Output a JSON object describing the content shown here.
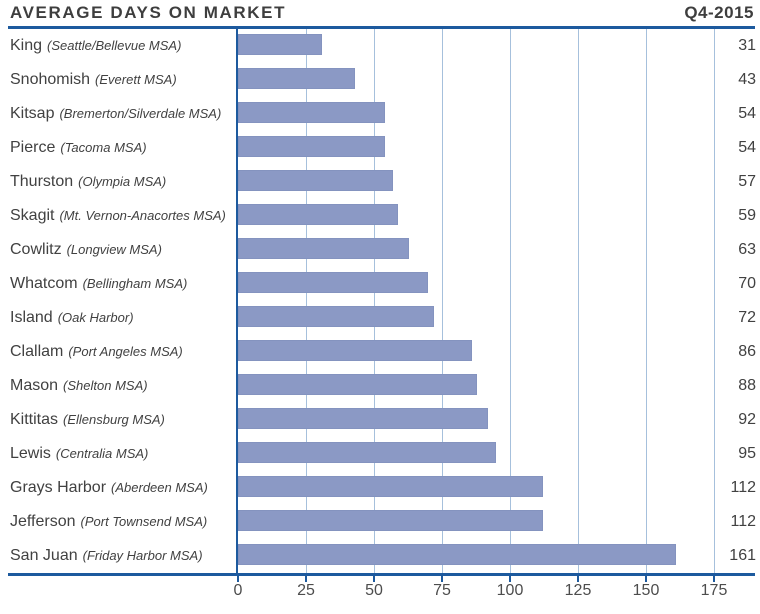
{
  "header": {
    "title": "AVERAGE DAYS ON MARKET",
    "period": "Q4-2015"
  },
  "chart_data": {
    "type": "bar",
    "orientation": "horizontal",
    "title": "AVERAGE DAYS ON MARKET",
    "subtitle": "Q4-2015",
    "categories": [
      "King",
      "Snohomish",
      "Kitsap",
      "Pierce",
      "Thurston",
      "Skagit",
      "Cowlitz",
      "Whatcom",
      "Island",
      "Clallam",
      "Mason",
      "Kittitas",
      "Lewis",
      "Grays Harbor",
      "Jefferson",
      "San Juan"
    ],
    "category_sublabels": [
      "(Seattle/Bellevue MSA)",
      "(Everett MSA)",
      "(Bremerton/Silverdale MSA)",
      "(Tacoma MSA)",
      "(Olympia MSA)",
      "(Mt. Vernon-Anacortes MSA)",
      "(Longview MSA)",
      "(Bellingham MSA)",
      "(Oak Harbor)",
      "(Port Angeles MSA)",
      "(Shelton MSA)",
      "(Ellensburg MSA)",
      "(Centralia MSA)",
      "(Aberdeen MSA)",
      "(Port Townsend MSA)",
      "(Friday Harbor MSA)"
    ],
    "values": [
      31,
      43,
      54,
      54,
      57,
      59,
      63,
      70,
      72,
      86,
      88,
      92,
      95,
      112,
      112,
      161
    ],
    "xlabel": "",
    "ylabel": "",
    "xlim": [
      0,
      175
    ],
    "x_ticks": [
      0,
      25,
      50,
      75,
      100,
      125,
      150,
      175
    ],
    "grid": true,
    "legend": "none",
    "value_labels_position": "right-column",
    "colors": {
      "bar_fill": "#8b99c5",
      "bar_border": "#8493bf",
      "axis_line": "#1d5a9e",
      "gridline": "#a6c0dc",
      "text": "#414141"
    }
  }
}
